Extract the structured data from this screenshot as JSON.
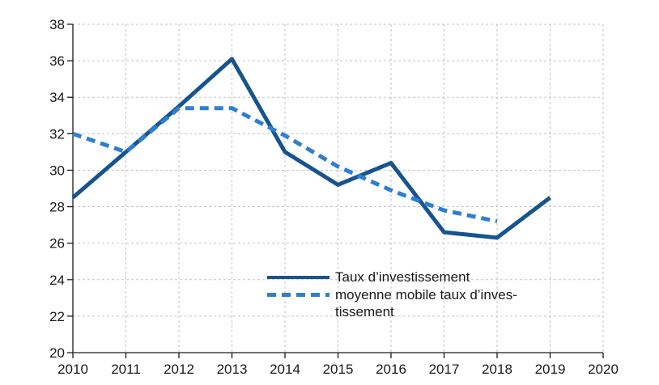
{
  "figure": {
    "background": "#ffffff"
  },
  "colors": {
    "axis": "#1a1a1a",
    "gridline": "#c3c3c3",
    "tick_label": "#1a1a1a",
    "series_solid": "#17548f",
    "series_dashed": "#2e7fd2"
  },
  "legend": {
    "items": [
      {
        "label": "Taux d’investissement"
      },
      {
        "line1": "moyenne mobile taux d’inves-",
        "line2": "tissement",
        "full_label": "moyenne mobile taux d’investissement"
      }
    ]
  },
  "chart_data": {
    "type": "line",
    "title": "",
    "xlabel": "",
    "ylabel": "",
    "x_axis": {
      "min": 2010,
      "max": 2020,
      "tick_step": 1,
      "ticks": [
        2010,
        2011,
        2012,
        2013,
        2014,
        2015,
        2016,
        2017,
        2018,
        2019,
        2020
      ]
    },
    "y_axis": {
      "min": 20,
      "max": 38,
      "tick_step": 2,
      "ticks": [
        20,
        22,
        24,
        26,
        28,
        30,
        32,
        34,
        36,
        38
      ]
    },
    "grid": {
      "horizontal": true,
      "vertical": true,
      "style": "dashed"
    },
    "legend_position": "inside-bottom-center",
    "series": [
      {
        "name": "Taux d’investissement",
        "style": "solid",
        "color": "#17548f",
        "x": [
          2010,
          2011,
          2012,
          2013,
          2014,
          2015,
          2016,
          2017,
          2018,
          2019
        ],
        "values": [
          28.5,
          31.0,
          33.5,
          36.1,
          31.0,
          29.2,
          30.4,
          26.6,
          26.3,
          28.5
        ]
      },
      {
        "name": "moyenne mobile taux d’investissement",
        "style": "dashed",
        "color": "#2e7fd2",
        "x": [
          2010,
          2011,
          2012,
          2013,
          2014,
          2015,
          2016,
          2017,
          2018
        ],
        "values": [
          32.0,
          31.0,
          33.4,
          33.4,
          31.9,
          30.2,
          28.9,
          27.8,
          27.2
        ]
      }
    ]
  }
}
